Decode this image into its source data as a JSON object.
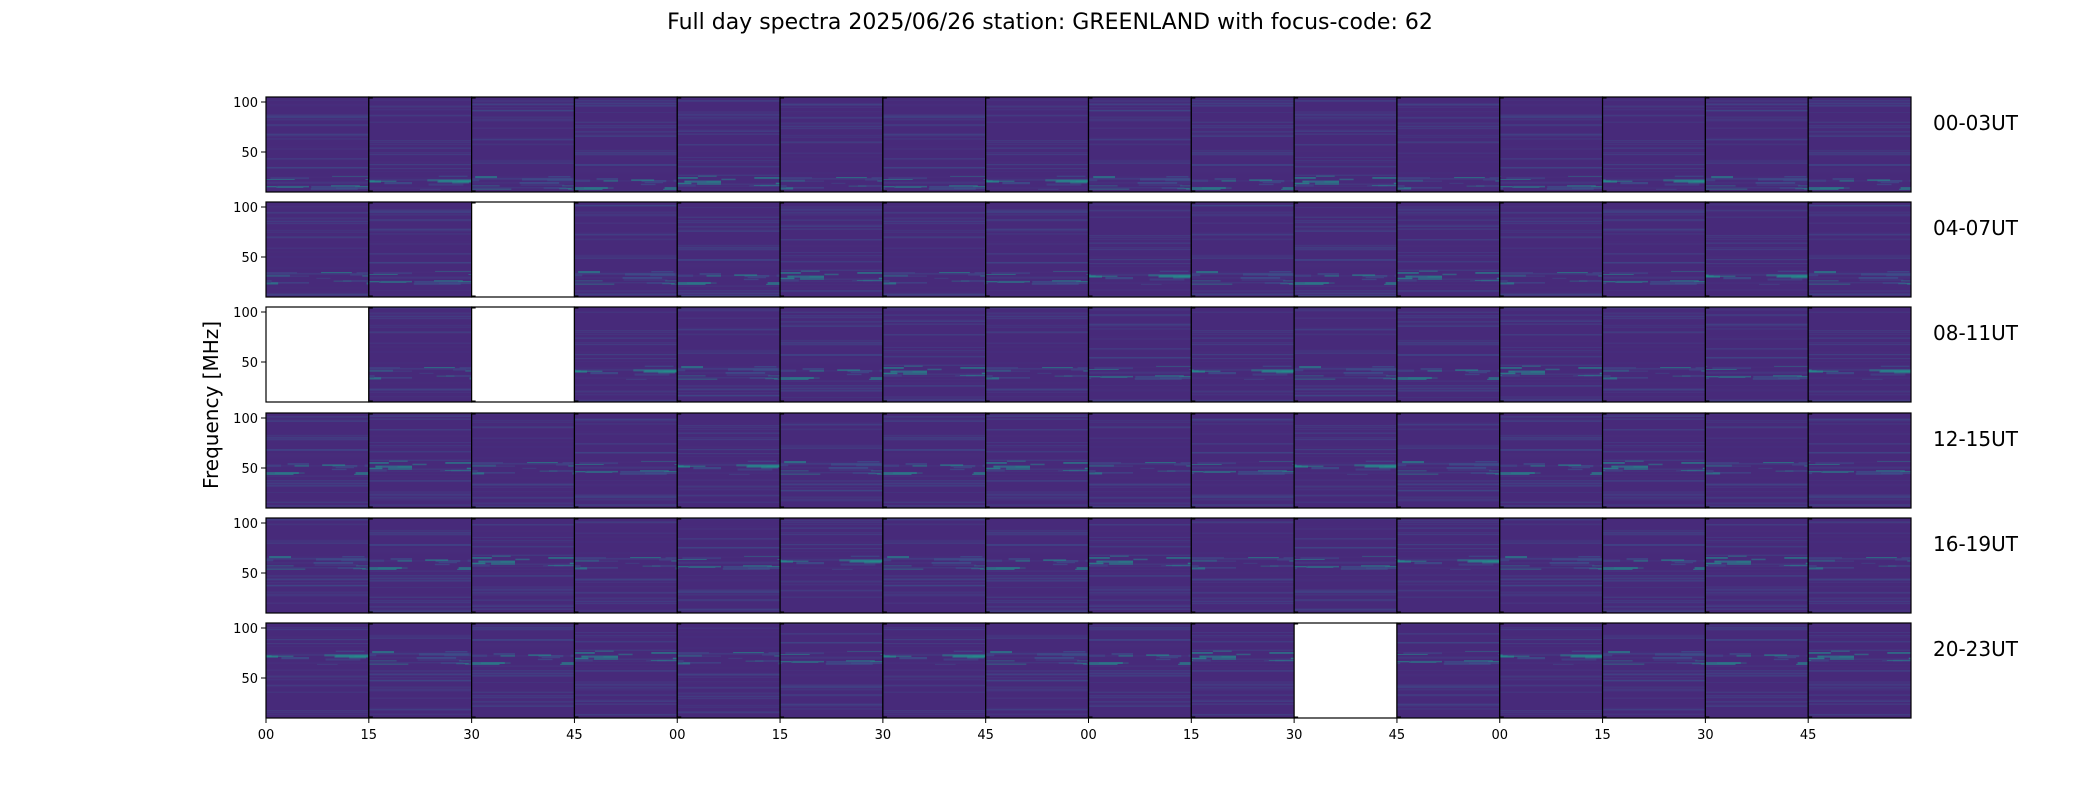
{
  "title": "Full day spectra 2025/06/26 station: GREENLAND with focus-code: 62",
  "chart_data": {
    "type": "heatmap",
    "title": "Full day spectra 2025/06/26 station: GREENLAND with focus-code: 62",
    "ylabel": "Frequency [MHz]",
    "xlabel": "",
    "ylim": [
      10,
      105
    ],
    "y_ticks": [
      50,
      100
    ],
    "x_tick_labels": [
      "00",
      "15",
      "30",
      "45",
      "00",
      "15",
      "30",
      "45",
      "00",
      "15",
      "30",
      "45",
      "00",
      "15",
      "30",
      "45"
    ],
    "colormap": {
      "background": "#472a7a",
      "low": "#46307c",
      "mid": "#3b528b",
      "high": "#21918c",
      "peak": "#2fb47c"
    },
    "rows": [
      {
        "label": "00-03UT",
        "missing_panels": []
      },
      {
        "label": "04-07UT",
        "missing_panels": [
          2
        ]
      },
      {
        "label": "08-11UT",
        "missing_panels": [
          0,
          2
        ]
      },
      {
        "label": "12-15UT",
        "missing_panels": []
      },
      {
        "label": "16-19UT",
        "missing_panels": []
      },
      {
        "label": "20-23UT",
        "missing_panels": [
          10
        ]
      }
    ],
    "panels_per_row": 16,
    "panel_minutes": 15,
    "grid": false
  }
}
